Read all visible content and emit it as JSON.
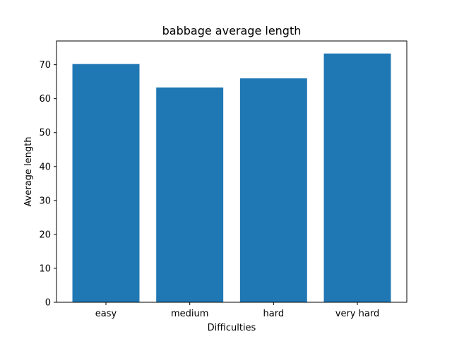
{
  "chart_data": {
    "type": "bar",
    "title": "babbage average length",
    "xlabel": "Difficulties",
    "ylabel": "Average length",
    "categories": [
      "easy",
      "medium",
      "hard",
      "very hard"
    ],
    "values": [
      70.2,
      63.3,
      66.0,
      73.3
    ],
    "ylim": [
      0,
      77
    ],
    "yticks": [
      0,
      10,
      20,
      30,
      40,
      50,
      60,
      70
    ],
    "bar_color": "#1f77b4",
    "grid": false,
    "legend": "none"
  }
}
